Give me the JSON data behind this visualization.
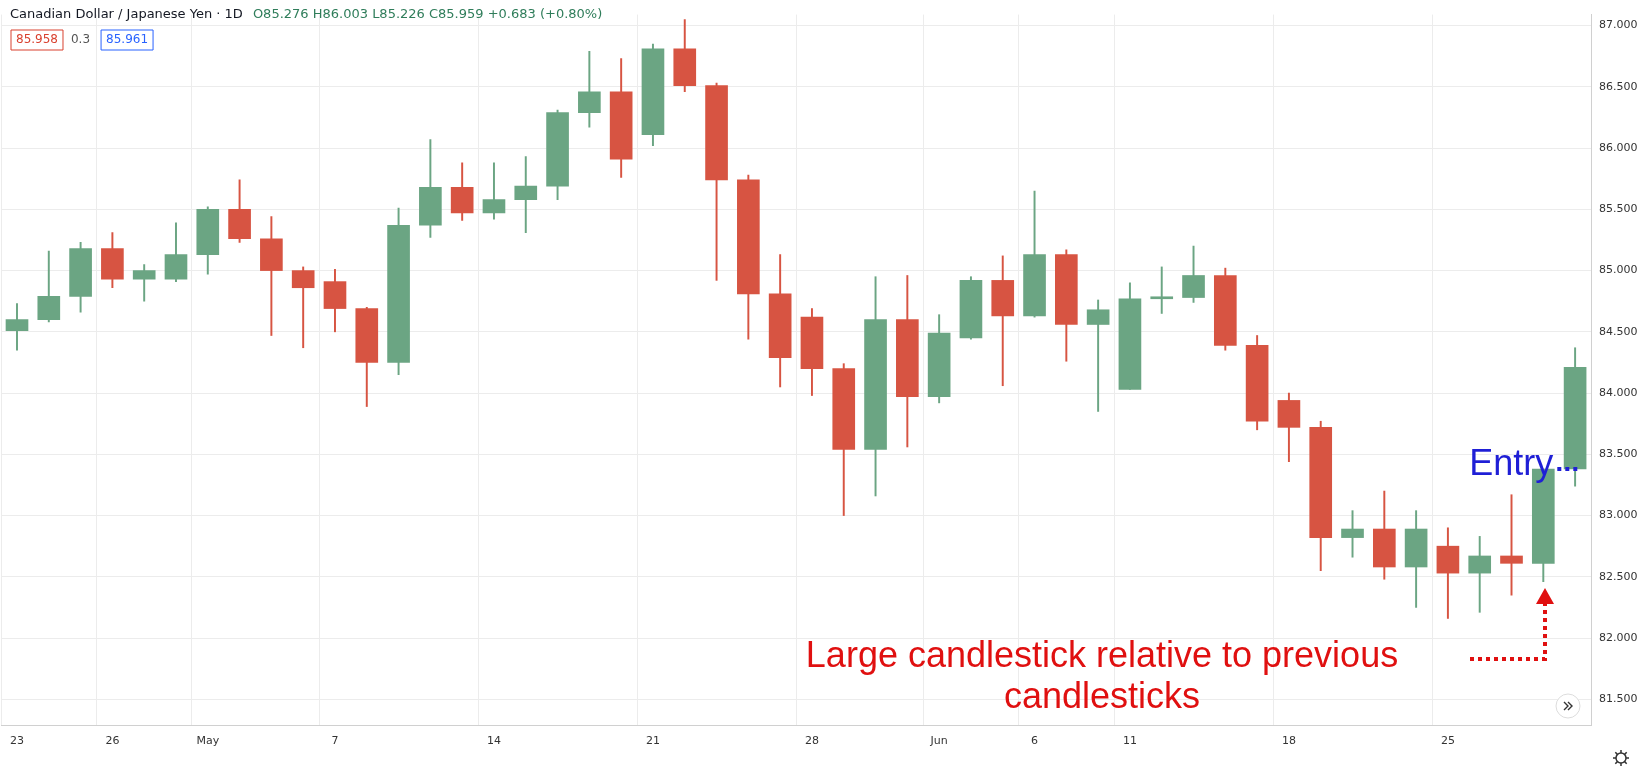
{
  "chart_data": {
    "type": "candlestick",
    "title": "Canadian Dollar / Japanese Yen · 1D",
    "subtitle": "O85.276 H86.003 L85.226 C85.959 +0.683 (+0.80%)",
    "categories": [
      "23",
      null,
      null,
      "26",
      null,
      null,
      "May",
      null,
      null,
      null,
      "7",
      null,
      null,
      null,
      null,
      "14",
      null,
      null,
      null,
      null,
      "21",
      null,
      null,
      null,
      null,
      "28",
      null,
      null,
      null,
      "Jun",
      null,
      null,
      "6",
      null,
      null,
      "11",
      null,
      null,
      null,
      null,
      "18",
      null,
      null,
      null,
      null,
      "25",
      null,
      null,
      null,
      null
    ],
    "ohlc": [
      [
        84.51,
        84.73,
        84.35,
        84.6
      ],
      [
        84.6,
        85.16,
        84.58,
        84.79
      ],
      [
        84.79,
        85.23,
        84.66,
        85.18
      ],
      [
        85.18,
        85.31,
        84.86,
        84.93
      ],
      [
        84.93,
        85.05,
        84.75,
        85.0
      ],
      [
        84.93,
        85.39,
        84.91,
        85.13
      ],
      [
        85.13,
        85.52,
        84.97,
        85.5
      ],
      [
        85.5,
        85.74,
        85.23,
        85.26
      ],
      [
        85.26,
        85.44,
        84.47,
        85.0
      ],
      [
        85.0,
        85.03,
        84.37,
        84.86
      ],
      [
        84.91,
        85.01,
        84.5,
        84.69
      ],
      [
        84.69,
        84.7,
        83.89,
        84.25
      ],
      [
        84.25,
        85.51,
        84.15,
        85.37
      ],
      [
        85.37,
        86.07,
        85.27,
        85.68
      ],
      [
        85.68,
        85.88,
        85.41,
        85.47
      ],
      [
        85.47,
        85.88,
        85.42,
        85.58
      ],
      [
        85.58,
        85.93,
        85.31,
        85.69
      ],
      [
        85.69,
        86.31,
        85.58,
        86.29
      ],
      [
        86.29,
        86.79,
        86.17,
        86.46
      ],
      [
        86.46,
        86.73,
        85.76,
        85.91
      ],
      [
        86.11,
        86.85,
        86.02,
        86.81
      ],
      [
        86.81,
        87.05,
        86.46,
        86.51
      ],
      [
        86.51,
        86.53,
        84.92,
        85.74
      ],
      [
        85.74,
        85.78,
        84.44,
        84.81
      ],
      [
        84.81,
        85.13,
        84.05,
        84.29
      ],
      [
        84.62,
        84.69,
        83.98,
        84.2
      ],
      [
        84.2,
        84.24,
        83.0,
        83.54
      ],
      [
        83.54,
        84.95,
        83.16,
        84.6
      ],
      [
        84.6,
        84.96,
        83.56,
        83.97
      ],
      [
        83.97,
        84.64,
        83.92,
        84.49
      ],
      [
        84.45,
        84.95,
        84.44,
        84.92
      ],
      [
        84.92,
        85.12,
        84.06,
        84.63
      ],
      [
        84.63,
        85.65,
        84.62,
        85.13
      ],
      [
        85.13,
        85.17,
        84.26,
        84.56
      ],
      [
        84.56,
        84.76,
        83.85,
        84.68
      ],
      [
        84.03,
        84.9,
        84.03,
        84.77
      ],
      [
        84.77,
        85.03,
        84.65,
        84.78
      ],
      [
        84.78,
        85.2,
        84.74,
        84.96
      ],
      [
        84.96,
        85.02,
        84.35,
        84.39
      ],
      [
        84.39,
        84.47,
        83.7,
        83.77
      ],
      [
        83.94,
        84.0,
        83.44,
        83.72
      ],
      [
        83.72,
        83.77,
        82.55,
        82.82
      ],
      [
        82.82,
        83.04,
        82.66,
        82.89
      ],
      [
        82.89,
        83.2,
        82.48,
        82.58
      ],
      [
        82.58,
        83.04,
        82.25,
        82.89
      ],
      [
        82.75,
        82.9,
        82.16,
        82.53
      ],
      [
        82.53,
        82.83,
        82.21,
        82.67
      ],
      [
        82.67,
        83.17,
        82.35,
        82.61
      ],
      [
        82.61,
        83.38,
        82.46,
        83.38
      ],
      [
        83.38,
        84.37,
        83.24,
        84.21
      ]
    ],
    "colors": [
      "#6ba583",
      "#6ba583",
      "#6ba583",
      "#d75442",
      "#6ba583",
      "#6ba583",
      "#6ba583",
      "#d75442",
      "#d75442",
      "#d75442",
      "#d75442",
      "#d75442",
      "#6ba583",
      "#6ba583",
      "#d75442",
      "#6ba583",
      "#6ba583",
      "#6ba583",
      "#6ba583",
      "#d75442",
      "#6ba583",
      "#d75442",
      "#d75442",
      "#d75442",
      "#d75442",
      "#d75442",
      "#d75442",
      "#6ba583",
      "#d75442",
      "#6ba583",
      "#6ba583",
      "#d75442",
      "#6ba583",
      "#d75442",
      "#6ba583",
      "#6ba583",
      "#6ba583",
      "#6ba583",
      "#d75442",
      "#d75442",
      "#d75442",
      "#d75442",
      "#6ba583",
      "#d75442",
      "#6ba583",
      "#d75442",
      "#6ba583",
      "#d75442",
      "#6ba583",
      "#6ba583"
    ],
    "ylim": [
      81.29,
      87.09
    ],
    "yticks": [
      {
        "value": 81.5,
        "label": "81.500"
      },
      {
        "value": 82,
        "label": "82.000"
      },
      {
        "value": 82.5,
        "label": "82.500"
      },
      {
        "value": 83,
        "label": "83.000"
      },
      {
        "value": 83.5,
        "label": "83.500"
      },
      {
        "value": 84,
        "label": "84.000"
      },
      {
        "value": 84.5,
        "label": "84.500"
      },
      {
        "value": 85,
        "label": "85.000"
      },
      {
        "value": 85.5,
        "label": "85.500"
      },
      {
        "value": 86,
        "label": "86.000"
      },
      {
        "value": 86.5,
        "label": "86.500"
      },
      {
        "value": 87,
        "label": "87.000"
      }
    ],
    "grid": true,
    "legend": false,
    "ref_lines": [
      {
        "axis": "y",
        "value": 83.38,
        "label": "Entry",
        "color": "#1f1fd6",
        "line_style": "dotted"
      }
    ],
    "annotations": [
      "85.958",
      "0.3",
      "85.961",
      "Large candlestick relative to previous candlesticks"
    ]
  }
}
